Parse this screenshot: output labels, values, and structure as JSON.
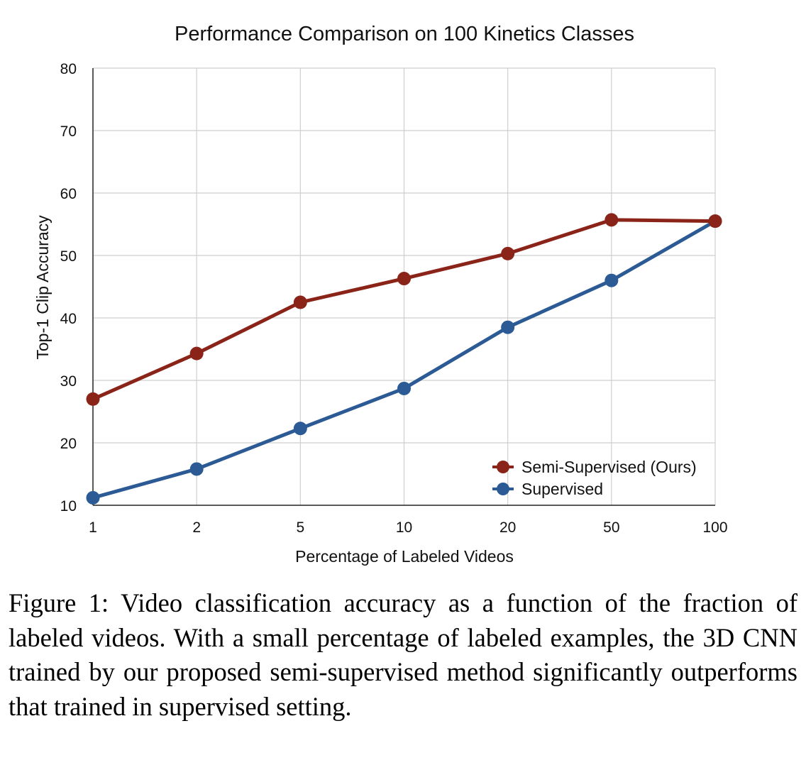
{
  "chart_data": {
    "type": "line",
    "title": "Performance Comparison on 100 Kinetics Classes",
    "xlabel": "Percentage of Labeled Videos",
    "ylabel": "Top-1 Clip Accuracy",
    "x": [
      "1",
      "2",
      "5",
      "10",
      "20",
      "50",
      "100"
    ],
    "ylim": [
      10,
      80
    ],
    "yticks": [
      "10",
      "20",
      "30",
      "40",
      "50",
      "60",
      "70",
      "80"
    ],
    "grid": true,
    "legend_position": "bottom-right",
    "series": [
      {
        "name": "Semi-Supervised (Ours)",
        "color": "#8b2418",
        "values": [
          27.0,
          34.3,
          42.5,
          46.3,
          50.3,
          55.7,
          55.5
        ]
      },
      {
        "name": "Supervised",
        "color": "#2b5a94",
        "values": [
          11.2,
          15.8,
          22.3,
          28.7,
          38.5,
          46.0,
          55.5
        ]
      }
    ]
  },
  "caption": {
    "label": "Figure 1:",
    "text": "Video classification accuracy as a function of the fraction of labeled videos. With a small percentage of labeled examples, the 3D CNN trained by our proposed semi-supervised method significantly outperforms that trained in supervised setting."
  }
}
